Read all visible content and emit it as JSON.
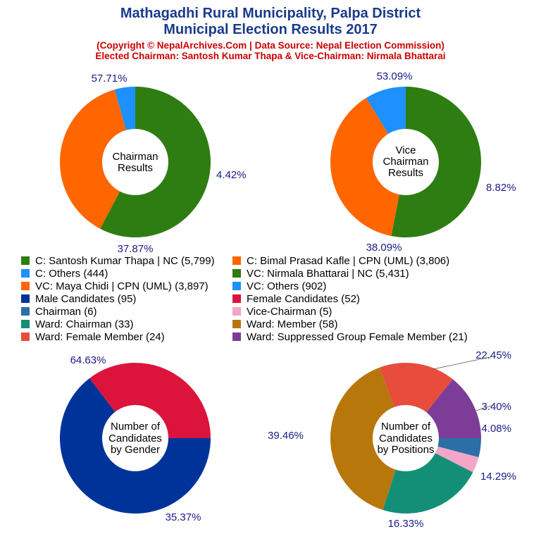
{
  "title_line1": "Mathagadhi Rural Municipality, Palpa District",
  "title_line2": "Municipal Election Results 2017",
  "subtitle_line1": "(Copyright © NepalArchives.Com | Data Source: Nepal Election Commission)",
  "subtitle_line2": "Elected Chairman: Santosh Kumar Thapa & Vice-Chairman: Nirmala Bhattarai",
  "legend": [
    {
      "label": "C: Santosh Kumar Thapa | NC (5,799)",
      "color": "#2e7d12"
    },
    {
      "label": "C: Bimal Prasad Kafle | CPN (UML) (3,806)",
      "color": "#ff6600"
    },
    {
      "label": "C: Others (444)",
      "color": "#1e90ff"
    },
    {
      "label": "VC: Nirmala Bhattarai | NC (5,431)",
      "color": "#2e7d12"
    },
    {
      "label": "VC: Maya Chidi | CPN (UML) (3,897)",
      "color": "#ff6600"
    },
    {
      "label": "VC: Others (902)",
      "color": "#1e90ff"
    },
    {
      "label": "Male Candidates (95)",
      "color": "#003399"
    },
    {
      "label": "Female Candidates (52)",
      "color": "#dc143c"
    },
    {
      "label": "Chairman (6)",
      "color": "#2c6fa6"
    },
    {
      "label": "Vice-Chairman (5)",
      "color": "#f4a6c8"
    },
    {
      "label": "Ward: Chairman (33)",
      "color": "#148f77"
    },
    {
      "label": "Ward: Member (58)",
      "color": "#b8770b"
    },
    {
      "label": "Ward: Female Member (24)",
      "color": "#e74c3c"
    },
    {
      "label": "Ward: Suppressed Group Female Member (21)",
      "color": "#7d3c98"
    }
  ],
  "chart_data": [
    {
      "type": "pie",
      "center_label": [
        "Chairman",
        "Results"
      ],
      "slices": [
        {
          "name": "C: Santosh Kumar Thapa | NC",
          "value": 5799,
          "label": "57.71%",
          "color": "#2e7d12"
        },
        {
          "name": "C: Bimal Prasad Kafle | CPN (UML)",
          "value": 3806,
          "label": "37.87%",
          "color": "#ff6600"
        },
        {
          "name": "C: Others",
          "value": 444,
          "label": "4.42%",
          "color": "#1e90ff"
        }
      ]
    },
    {
      "type": "pie",
      "center_label": [
        "Vice",
        "Chairman",
        "Results"
      ],
      "slices": [
        {
          "name": "VC: Nirmala Bhattarai | NC",
          "value": 5431,
          "label": "53.09%",
          "color": "#2e7d12"
        },
        {
          "name": "VC: Maya Chidi | CPN (UML)",
          "value": 3897,
          "label": "38.09%",
          "color": "#ff6600"
        },
        {
          "name": "VC: Others",
          "value": 902,
          "label": "8.82%",
          "color": "#1e90ff"
        }
      ]
    },
    {
      "type": "pie",
      "center_label": [
        "Number of",
        "Candidates",
        "by Gender"
      ],
      "slices": [
        {
          "name": "Male Candidates",
          "value": 95,
          "label": "64.63%",
          "color": "#003399"
        },
        {
          "name": "Female Candidates",
          "value": 52,
          "label": "35.37%",
          "color": "#dc143c"
        }
      ]
    },
    {
      "type": "pie",
      "center_label": [
        "Number of",
        "Candidates",
        "by Positions"
      ],
      "slices": [
        {
          "name": "Chairman",
          "value": 6,
          "label": "4.08%",
          "color": "#2c6fa6"
        },
        {
          "name": "Vice-Chairman",
          "value": 5,
          "label": "3.40%",
          "color": "#f4a6c8"
        },
        {
          "name": "Ward: Chairman",
          "value": 33,
          "label": "22.45%",
          "color": "#148f77"
        },
        {
          "name": "Ward: Member",
          "value": 58,
          "label": "39.46%",
          "color": "#b8770b"
        },
        {
          "name": "Ward: Female Member",
          "value": 24,
          "label": "16.33%",
          "color": "#e74c3c"
        },
        {
          "name": "Ward: Suppressed Group Female Member",
          "value": 21,
          "label": "14.29%",
          "color": "#7d3c98"
        }
      ]
    }
  ]
}
